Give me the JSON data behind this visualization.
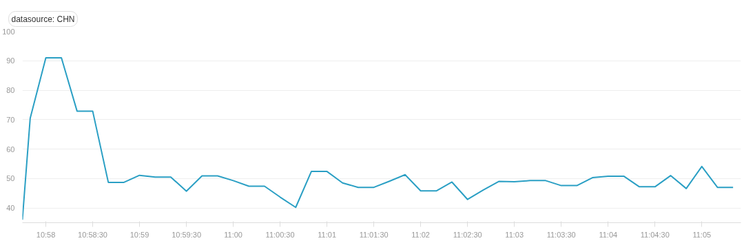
{
  "chart_data": {
    "type": "line",
    "title": "datasource: CHN",
    "x": [
      10.9625,
      10.96389,
      10.96667,
      10.96944,
      10.97222,
      10.975,
      10.97778,
      10.98056,
      10.98333,
      10.98611,
      10.98889,
      10.99167,
      10.99444,
      10.99722,
      11.0,
      11.00278,
      11.00556,
      11.00833,
      11.01111,
      11.01389,
      11.01667,
      11.01944,
      11.02222,
      11.025,
      11.02778,
      11.03056,
      11.03333,
      11.03611,
      11.03889,
      11.04167,
      11.04444,
      11.04722,
      11.05,
      11.05278,
      11.05556,
      11.05833,
      11.06111,
      11.06389,
      11.06667,
      11.06944,
      11.07222,
      11.075,
      11.07778,
      11.08056,
      11.08333,
      11.08611,
      11.08889
    ],
    "series": [
      {
        "color": "#2a9fc4",
        "values": [
          36,
          70.5,
          91,
          91,
          72.9,
          72.9,
          48.7,
          48.7,
          51.1,
          50.5,
          50.5,
          45.7,
          50.9,
          50.9,
          49.3,
          47.4,
          47.4,
          43.7,
          40.2,
          52.4,
          52.4,
          48.5,
          47,
          47,
          49.1,
          51.3,
          45.8,
          45.8,
          48.8,
          42.9,
          46.1,
          49,
          48.9,
          49.3,
          49.3,
          47.6,
          47.6,
          50.3,
          50.8,
          50.8,
          47.2,
          47.2,
          51,
          46.6,
          54.1,
          47,
          47
        ]
      }
    ],
    "xlim": [
      10.9625,
      11.09028
    ],
    "ylim": [
      35,
      100
    ],
    "xticks": [
      {
        "value": 10.96667,
        "label": "10:58"
      },
      {
        "value": 10.975,
        "label": "10:58:30"
      },
      {
        "value": 10.98333,
        "label": "10:59"
      },
      {
        "value": 10.99167,
        "label": "10:59:30"
      },
      {
        "value": 11.0,
        "label": "11:00"
      },
      {
        "value": 11.00833,
        "label": "11:00:30"
      },
      {
        "value": 11.01667,
        "label": "11:01"
      },
      {
        "value": 11.025,
        "label": "11:01:30"
      },
      {
        "value": 11.03333,
        "label": "11:02"
      },
      {
        "value": 11.04167,
        "label": "11:02:30"
      },
      {
        "value": 11.05,
        "label": "11:03"
      },
      {
        "value": 11.05833,
        "label": "11:03:30"
      },
      {
        "value": 11.06667,
        "label": "11:04"
      },
      {
        "value": 11.075,
        "label": "11:04:30"
      },
      {
        "value": 11.08333,
        "label": "11:05"
      }
    ],
    "yticks": [
      40,
      50,
      60,
      70,
      80,
      90,
      100
    ],
    "grid": "y",
    "marker": "none",
    "line_style": "solid"
  }
}
